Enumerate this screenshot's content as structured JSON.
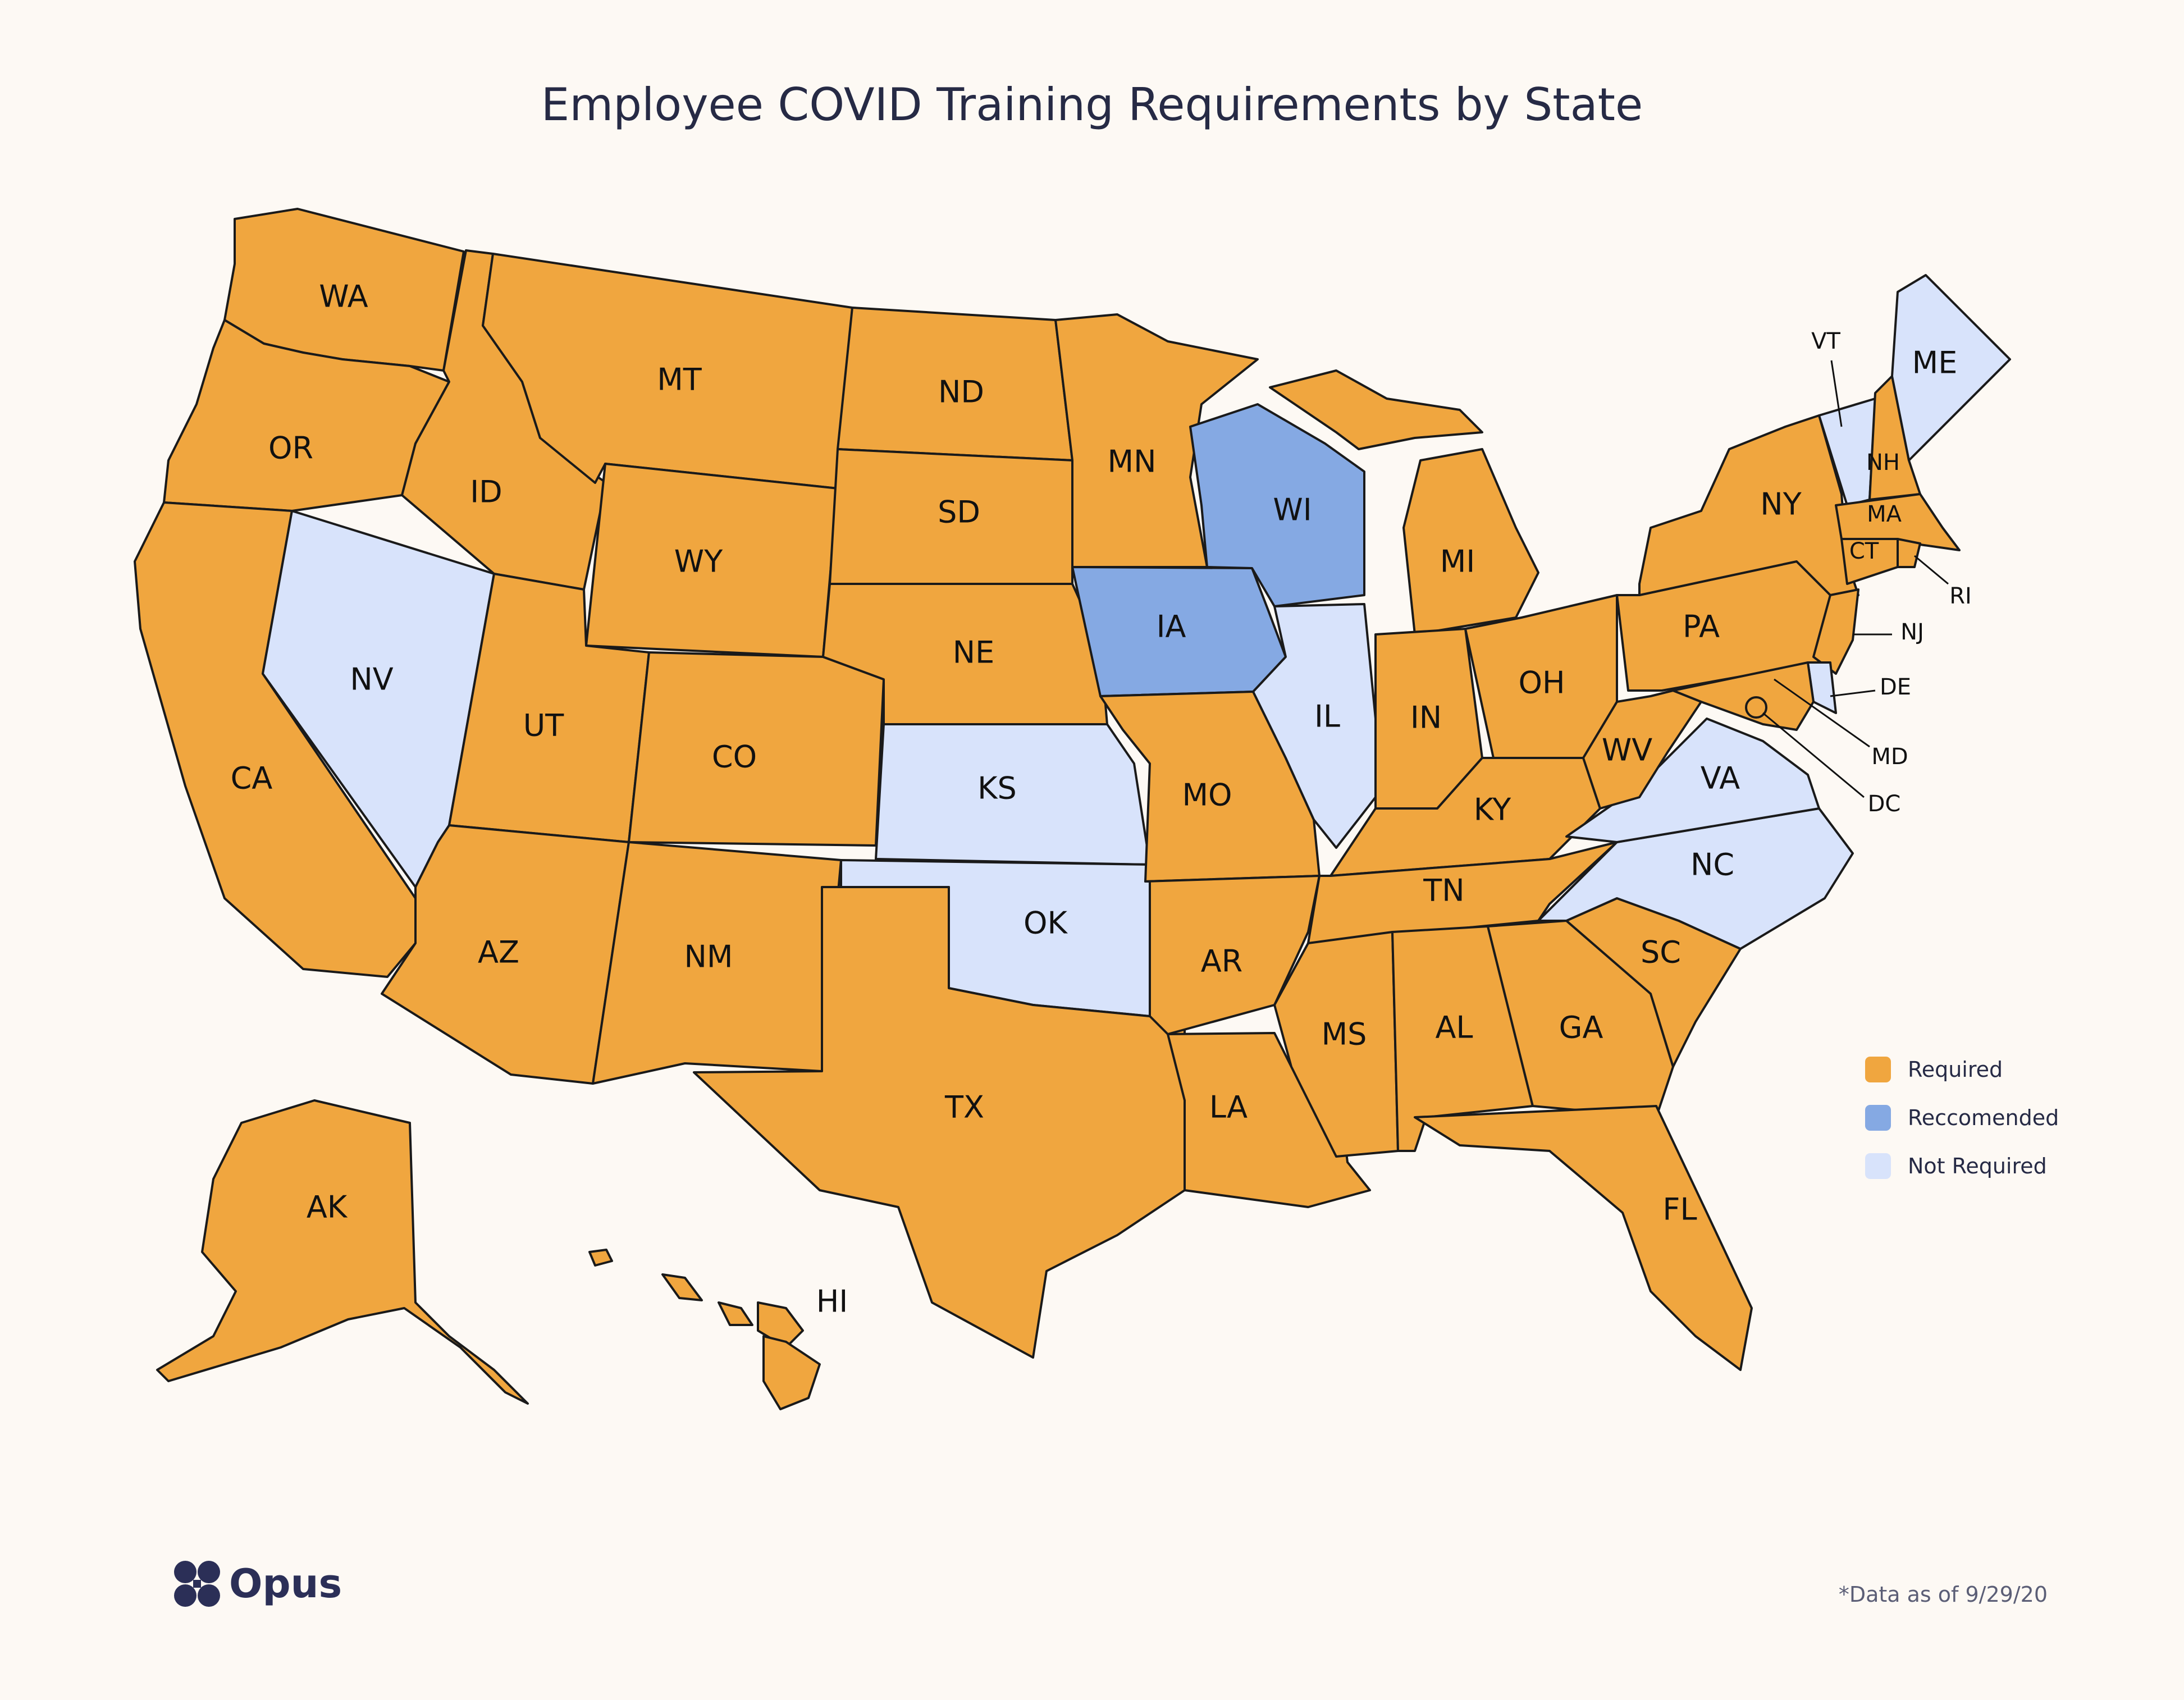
{
  "title": "Employee COVID Training Requirements by State",
  "colors": {
    "required": "#f0a63f",
    "recommended": "#85a9e3",
    "not_required": "#d8e3fb"
  },
  "legend": [
    {
      "label": "Required",
      "status": "required"
    },
    {
      "label": "Reccomended",
      "status": "recommended"
    },
    {
      "label": "Not Required",
      "status": "not_required"
    }
  ],
  "states": [
    {
      "code": "WA",
      "status": "required"
    },
    {
      "code": "OR",
      "status": "required"
    },
    {
      "code": "CA",
      "status": "required"
    },
    {
      "code": "NV",
      "status": "not_required"
    },
    {
      "code": "ID",
      "status": "required"
    },
    {
      "code": "MT",
      "status": "required"
    },
    {
      "code": "WY",
      "status": "required"
    },
    {
      "code": "UT",
      "status": "required"
    },
    {
      "code": "AZ",
      "status": "required"
    },
    {
      "code": "CO",
      "status": "required"
    },
    {
      "code": "NM",
      "status": "required"
    },
    {
      "code": "ND",
      "status": "required"
    },
    {
      "code": "SD",
      "status": "required"
    },
    {
      "code": "NE",
      "status": "required"
    },
    {
      "code": "KS",
      "status": "not_required"
    },
    {
      "code": "OK",
      "status": "not_required"
    },
    {
      "code": "TX",
      "status": "required"
    },
    {
      "code": "MN",
      "status": "required"
    },
    {
      "code": "IA",
      "status": "recommended"
    },
    {
      "code": "MO",
      "status": "required"
    },
    {
      "code": "AR",
      "status": "required"
    },
    {
      "code": "LA",
      "status": "required"
    },
    {
      "code": "WI",
      "status": "recommended"
    },
    {
      "code": "IL",
      "status": "not_required"
    },
    {
      "code": "MI",
      "status": "required"
    },
    {
      "code": "IN",
      "status": "required"
    },
    {
      "code": "OH",
      "status": "required"
    },
    {
      "code": "KY",
      "status": "required"
    },
    {
      "code": "TN",
      "status": "required"
    },
    {
      "code": "MS",
      "status": "required"
    },
    {
      "code": "AL",
      "status": "required"
    },
    {
      "code": "GA",
      "status": "required"
    },
    {
      "code": "FL",
      "status": "required"
    },
    {
      "code": "SC",
      "status": "required"
    },
    {
      "code": "NC",
      "status": "not_required"
    },
    {
      "code": "VA",
      "status": "not_required"
    },
    {
      "code": "WV",
      "status": "required"
    },
    {
      "code": "PA",
      "status": "required"
    },
    {
      "code": "NY",
      "status": "required"
    },
    {
      "code": "VT",
      "status": "not_required"
    },
    {
      "code": "NH",
      "status": "required"
    },
    {
      "code": "ME",
      "status": "not_required"
    },
    {
      "code": "MA",
      "status": "required"
    },
    {
      "code": "CT",
      "status": "required"
    },
    {
      "code": "RI",
      "status": "required"
    },
    {
      "code": "NJ",
      "status": "required"
    },
    {
      "code": "DE",
      "status": "not_required"
    },
    {
      "code": "MD",
      "status": "required"
    },
    {
      "code": "DC",
      "status": "required"
    },
    {
      "code": "AK",
      "status": "required"
    },
    {
      "code": "HI",
      "status": "required"
    }
  ],
  "brand": "Opus",
  "footnote": "*Data as of 9/29/20"
}
